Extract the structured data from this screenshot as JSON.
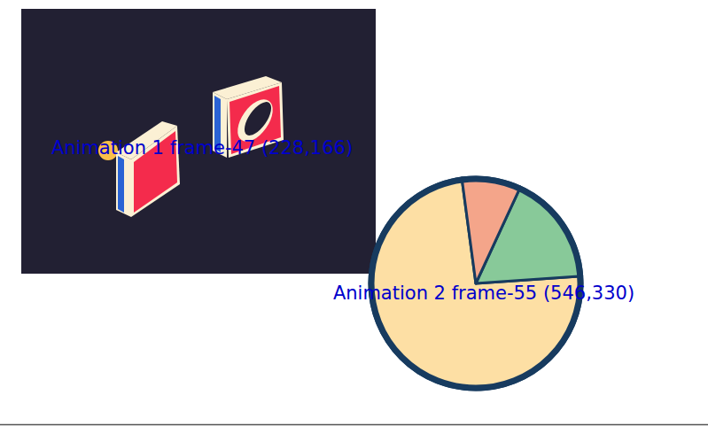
{
  "annotations": [
    "Animation 1 frame-47 (228,166)",
    "Animation 2 frame-55 (546,330)"
  ],
  "chart_data": {
    "type": "pie",
    "values": [
      74,
      17,
      9
    ],
    "colors": [
      "#fddfa4",
      "#88c999",
      "#f4a58a"
    ]
  }
}
